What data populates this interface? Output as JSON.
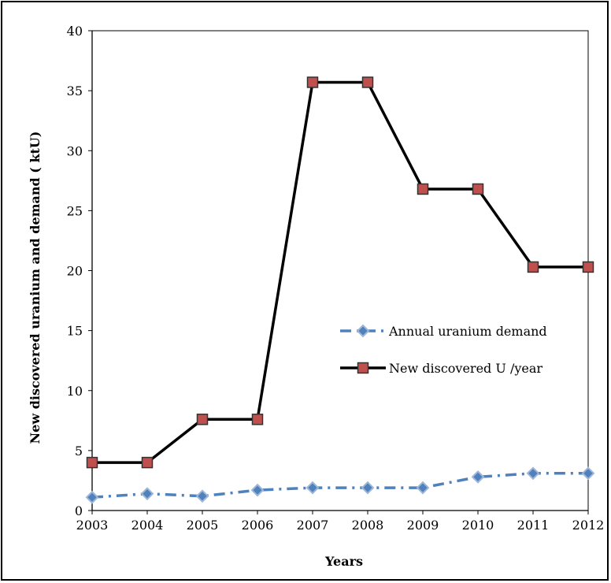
{
  "chart_data": {
    "type": "line",
    "title": "",
    "xlabel": "Years",
    "ylabel": "New discovered  uranium and demand ( ktU)",
    "categories": [
      "2003",
      "2004",
      "2005",
      "2006",
      "2007",
      "2008",
      "2009",
      "2010",
      "2011",
      "2012"
    ],
    "ylim": [
      0,
      40
    ],
    "yticks": [
      0,
      5,
      10,
      15,
      20,
      25,
      30,
      35,
      40
    ],
    "grid": false,
    "legend_position": "center-right",
    "series": [
      {
        "name": "Annual uranium demand",
        "values": [
          1.1,
          1.4,
          1.2,
          1.7,
          1.9,
          1.9,
          1.9,
          2.8,
          3.1,
          3.1
        ],
        "color": "#4f81bd",
        "line_style": "dash-dot",
        "marker": "diamond"
      },
      {
        "name": "New discovered U /year",
        "values": [
          4.0,
          4.0,
          7.6,
          7.6,
          35.7,
          35.7,
          26.8,
          26.8,
          20.3,
          20.3
        ],
        "color": "#000000",
        "marker_fill": "#c0504d",
        "line_style": "solid",
        "marker": "square",
        "step": true
      }
    ]
  }
}
